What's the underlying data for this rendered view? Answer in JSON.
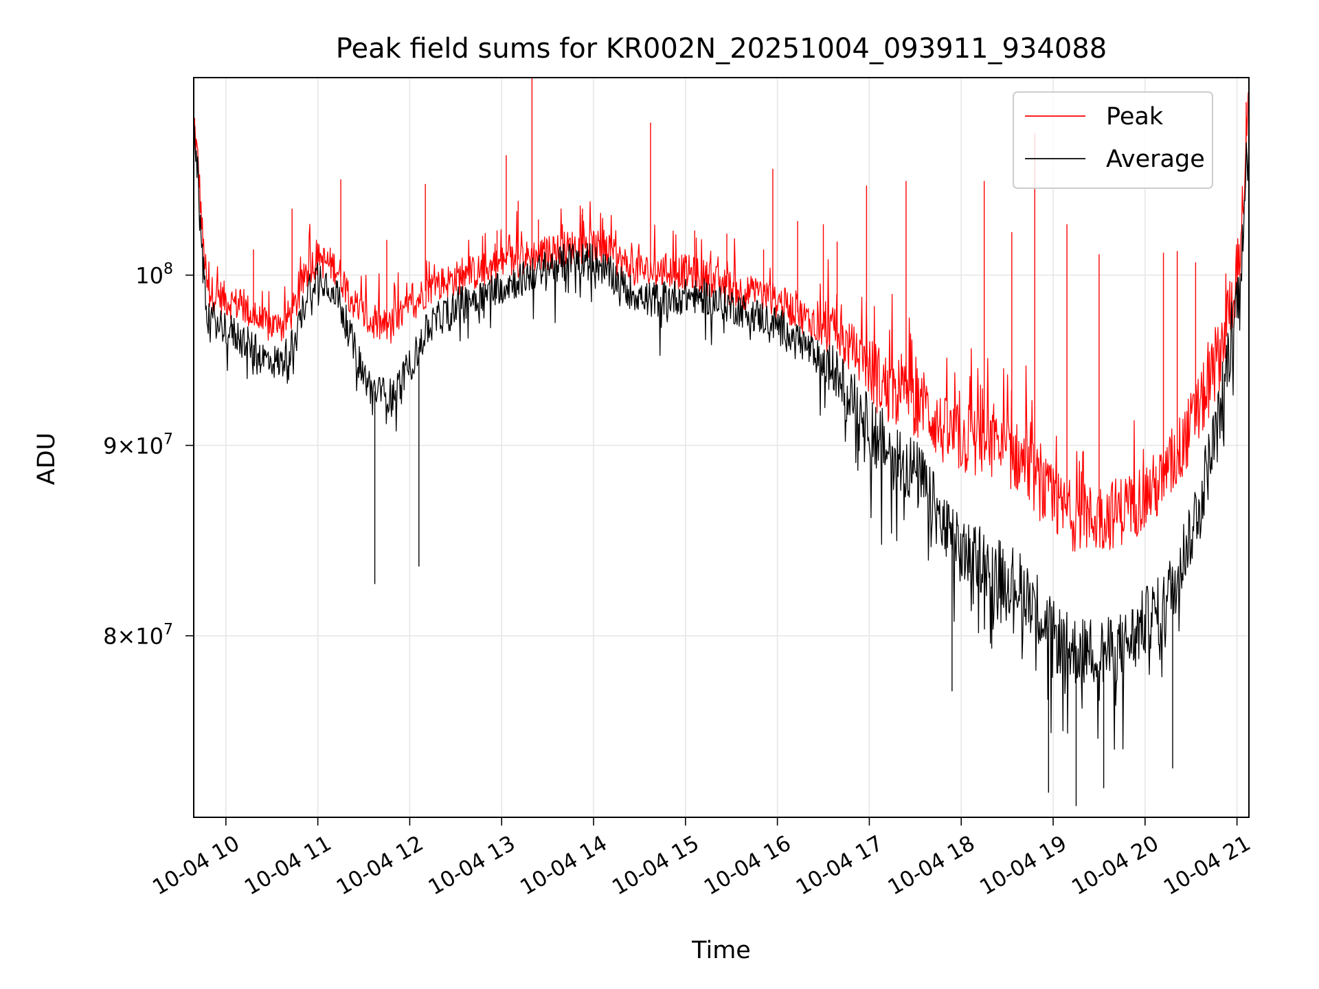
{
  "chart_data": {
    "type": "line",
    "title": "Peak field sums for KR002N_20251004_093911_934088",
    "xlabel": "Time",
    "ylabel": "ADU",
    "x_unit": "hours since 10-04 00:00",
    "xlim": [
      9.65,
      21.13
    ],
    "ylim": [
      71500000,
      113000000
    ],
    "y_scale": "log",
    "grid": true,
    "legend_position": "top-right",
    "x_ticks": [
      {
        "value": 10,
        "label": "10-04 10"
      },
      {
        "value": 11,
        "label": "10-04 11"
      },
      {
        "value": 12,
        "label": "10-04 12"
      },
      {
        "value": 13,
        "label": "10-04 13"
      },
      {
        "value": 14,
        "label": "10-04 14"
      },
      {
        "value": 15,
        "label": "10-04 15"
      },
      {
        "value": 16,
        "label": "10-04 16"
      },
      {
        "value": 17,
        "label": "10-04 17"
      },
      {
        "value": 18,
        "label": "10-04 18"
      },
      {
        "value": 19,
        "label": "10-04 19"
      },
      {
        "value": 20,
        "label": "10-04 20"
      },
      {
        "value": 21,
        "label": "10-04 21"
      }
    ],
    "y_ticks": [
      {
        "value": 80000000,
        "base": "8",
        "exp": "7"
      },
      {
        "value": 90000000,
        "base": "9",
        "exp": "7"
      },
      {
        "value": 100000000,
        "base": "10",
        "exp": "8"
      }
    ],
    "series": [
      {
        "name": "Peak",
        "color": "#ff0000",
        "baseline": {
          "x": [
            9.65,
            9.7,
            9.75,
            9.8,
            9.9,
            10.0,
            10.2,
            10.4,
            10.6,
            10.75,
            10.9,
            11.0,
            11.2,
            11.4,
            11.5,
            11.6,
            11.8,
            12.0,
            12.2,
            12.5,
            12.8,
            13.0,
            13.2,
            13.5,
            13.8,
            14.0,
            14.2,
            14.4,
            14.6,
            14.8,
            15.0,
            15.2,
            15.4,
            15.6,
            15.8,
            16.0,
            16.2,
            16.4,
            16.6,
            16.8,
            17.0,
            17.2,
            17.4,
            17.6,
            17.8,
            18.0,
            18.2,
            18.4,
            18.6,
            18.8,
            19.0,
            19.2,
            19.4,
            19.6,
            19.8,
            20.0,
            20.2,
            20.4,
            20.6,
            20.8,
            20.9,
            21.0,
            21.05,
            21.1,
            21.13
          ],
          "y": [
            110000000,
            107000000,
            102000000,
            99000000,
            98800000,
            98500000,
            98000000,
            97000000,
            96800000,
            98000000,
            100500000,
            101000000,
            100500000,
            98200000,
            97500000,
            97000000,
            96800000,
            98000000,
            99200000,
            99800000,
            100300000,
            100700000,
            101000000,
            101400000,
            101800000,
            101800000,
            101200000,
            100500000,
            100200000,
            100300000,
            100200000,
            99900000,
            99400000,
            99000000,
            98800000,
            98400000,
            97800000,
            97000000,
            96500000,
            95600000,
            94300000,
            93200000,
            92900000,
            92200000,
            90800000,
            90300000,
            90200000,
            89800000,
            89400000,
            88200000,
            86800000,
            86200000,
            86000000,
            86200000,
            86600000,
            87300000,
            88000000,
            90000000,
            92200000,
            95000000,
            97500000,
            100000000,
            103000000,
            108000000,
            111000000
          ]
        },
        "spikes": [
          {
            "x": 9.66,
            "y": 110200000
          },
          {
            "x": 10.3,
            "y": 101600000
          },
          {
            "x": 10.72,
            "y": 104200000
          },
          {
            "x": 11.25,
            "y": 106100000
          },
          {
            "x": 11.75,
            "y": 102200000
          },
          {
            "x": 12.17,
            "y": 105800000
          },
          {
            "x": 12.95,
            "y": 102800000
          },
          {
            "x": 13.05,
            "y": 107700000
          },
          {
            "x": 13.18,
            "y": 104700000
          },
          {
            "x": 13.33,
            "y": 113000000
          },
          {
            "x": 13.4,
            "y": 103500000
          },
          {
            "x": 13.88,
            "y": 104200000
          },
          {
            "x": 14.62,
            "y": 109900000
          },
          {
            "x": 15.1,
            "y": 102800000
          },
          {
            "x": 15.45,
            "y": 102600000
          },
          {
            "x": 15.85,
            "y": 101600000
          },
          {
            "x": 15.95,
            "y": 106800000
          },
          {
            "x": 16.22,
            "y": 103400000
          },
          {
            "x": 16.5,
            "y": 103200000
          },
          {
            "x": 16.65,
            "y": 102100000
          },
          {
            "x": 16.97,
            "y": 105700000
          },
          {
            "x": 17.4,
            "y": 106000000
          },
          {
            "x": 18.25,
            "y": 106000000
          },
          {
            "x": 18.55,
            "y": 102700000
          },
          {
            "x": 18.8,
            "y": 109200000
          },
          {
            "x": 19.15,
            "y": 103200000
          },
          {
            "x": 19.5,
            "y": 101300000
          },
          {
            "x": 20.2,
            "y": 101400000
          },
          {
            "x": 20.35,
            "y": 101500000
          },
          {
            "x": 20.55,
            "y": 100800000
          },
          {
            "x": 21.1,
            "y": 111300000
          }
        ]
      },
      {
        "name": "Average",
        "color": "#000000",
        "baseline": {
          "x": [
            9.65,
            9.7,
            9.75,
            9.8,
            9.9,
            10.0,
            10.2,
            10.4,
            10.6,
            10.75,
            10.9,
            11.0,
            11.2,
            11.4,
            11.5,
            11.6,
            11.8,
            12.0,
            12.2,
            12.5,
            12.8,
            13.0,
            13.2,
            13.5,
            13.8,
            14.0,
            14.2,
            14.4,
            14.6,
            14.8,
            15.0,
            15.2,
            15.4,
            15.6,
            15.8,
            16.0,
            16.2,
            16.4,
            16.6,
            16.8,
            17.0,
            17.2,
            17.4,
            17.6,
            17.8,
            18.0,
            18.2,
            18.4,
            18.6,
            18.8,
            19.0,
            19.2,
            19.4,
            19.6,
            19.8,
            20.0,
            20.2,
            20.4,
            20.6,
            20.8,
            20.9,
            21.0,
            21.05,
            21.1,
            21.13
          ],
          "y": [
            109500000,
            106000000,
            100500000,
            97500000,
            97200000,
            96800000,
            96000000,
            95000000,
            94700000,
            96000000,
            99200000,
            100100000,
            99000000,
            95500000,
            94000000,
            93100000,
            92800000,
            94500000,
            96800000,
            98200000,
            98800000,
            99400000,
            99700000,
            100500000,
            101100000,
            100900000,
            100000000,
            99000000,
            98500000,
            98600000,
            98700000,
            98700000,
            98300000,
            97900000,
            97500000,
            97000000,
            96300000,
            95200000,
            94300000,
            93000000,
            91300000,
            89700000,
            89100000,
            87800000,
            85600000,
            84200000,
            84000000,
            83300000,
            82700000,
            81700000,
            80000000,
            79300000,
            79200000,
            79200000,
            79600000,
            80700000,
            81400000,
            83900000,
            87100000,
            91300000,
            95000000,
            98500000,
            101500000,
            106500000,
            109800000
          ]
        },
        "spikes": [
          {
            "x": 11.62,
            "y": 82600000
          },
          {
            "x": 12.1,
            "y": 83500000
          },
          {
            "x": 17.9,
            "y": 77300000
          },
          {
            "x": 18.95,
            "y": 72600000
          },
          {
            "x": 19.25,
            "y": 72000000
          },
          {
            "x": 19.55,
            "y": 72800000
          },
          {
            "x": 20.3,
            "y": 73700000
          }
        ]
      }
    ]
  }
}
